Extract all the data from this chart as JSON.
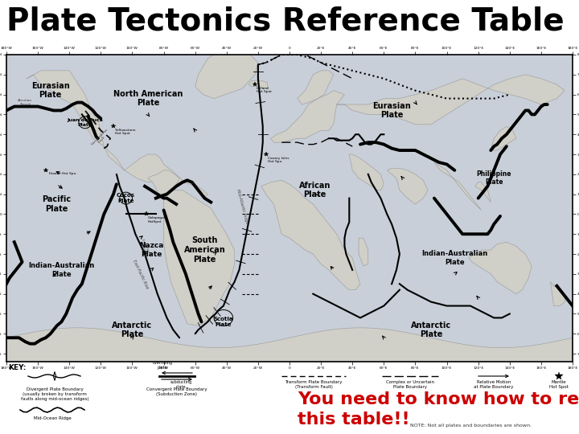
{
  "title": "Plate Tectonics Reference Table",
  "title_fontsize": 28,
  "title_fontweight": "bold",
  "title_color": "#000000",
  "bg_color": "#ffffff",
  "annotation_text": "You need to know how to read\nthis table!!",
  "annotation_color": "#cc0000",
  "annotation_fontsize": 16,
  "annotation_fontweight": "bold",
  "fig_width": 7.2,
  "fig_height": 5.4,
  "dpi": 100,
  "map_ocean_color": "#c8d8e8",
  "map_land_color": "#d8d8d8",
  "map_border_color": "#000000",
  "map_bg_color": "#c8cfd8",
  "key_label": "KEY:",
  "note_text": "NOTE: Not all plates and boundaries are shown."
}
